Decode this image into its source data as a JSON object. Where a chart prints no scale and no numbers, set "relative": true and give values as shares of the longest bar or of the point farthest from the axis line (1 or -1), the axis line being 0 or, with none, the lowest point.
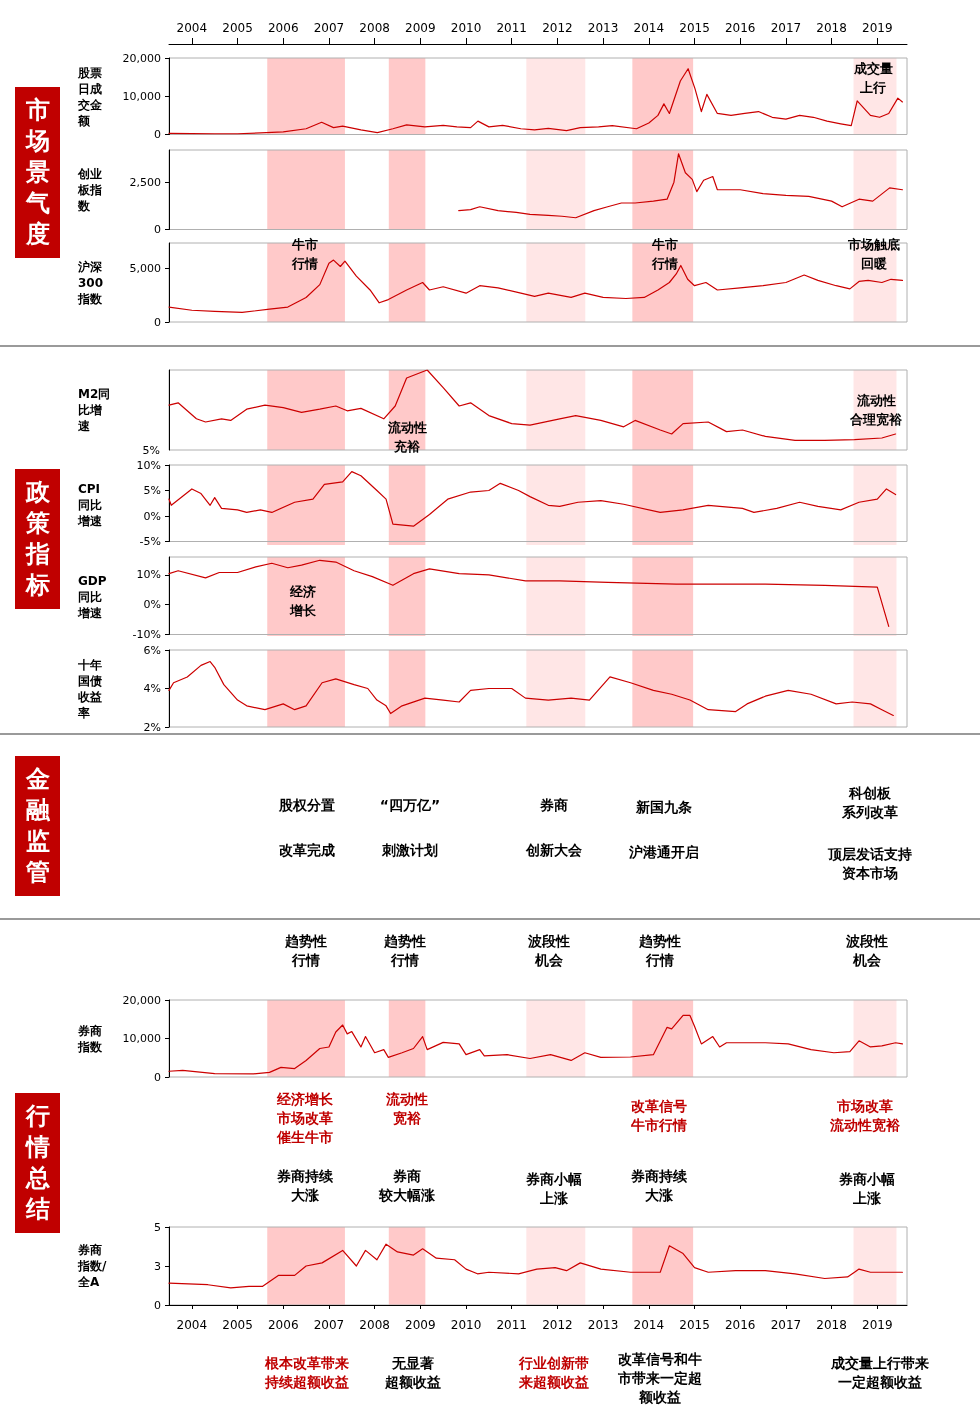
{
  "chart_data": [
    {
      "type": "line",
      "title": "市场景气度",
      "ylabel": "股票日成交金额",
      "xlim": [
        2004,
        2020.15
      ],
      "ylim": [
        0,
        20000
      ],
      "yticks": [
        {
          "value": 0,
          "label": "0"
        },
        {
          "value": 10000,
          "label": "10,000"
        },
        {
          "value": 20000,
          "label": "20,000"
        }
      ],
      "x2lim": [
        2004,
        2020.15
      ],
      "x2ticks": [
        {
          "value": 2004.5,
          "label": "2004"
        },
        {
          "value": 2005.5,
          "label": "2005"
        },
        {
          "value": 2006.5,
          "label": "2006"
        },
        {
          "value": 2007.5,
          "label": "2007"
        },
        {
          "value": 2008.5,
          "label": "2008"
        },
        {
          "value": 2009.5,
          "label": "2009"
        },
        {
          "value": 2010.5,
          "label": "2010"
        },
        {
          "value": 2011.5,
          "label": "2011"
        },
        {
          "value": 2012.5,
          "label": "2012"
        },
        {
          "value": 2013.5,
          "label": "2013"
        },
        {
          "value": 2014.5,
          "label": "2014"
        },
        {
          "value": 2015.5,
          "label": "2015"
        },
        {
          "value": 2016.5,
          "label": "2016"
        },
        {
          "value": 2017.5,
          "label": "2017"
        },
        {
          "value": 2018.5,
          "label": "2018"
        },
        {
          "value": 2019.5,
          "label": "2019"
        }
      ],
      "tick_labels": "y",
      "color": "#cc0000",
      "x": [
        2004.0,
        2005.0,
        2005.5,
        2006.0,
        2006.5,
        2007.0,
        2007.34,
        2007.6,
        2007.8,
        2008.2,
        2008.56,
        2008.9,
        2009.2,
        2009.6,
        2010.0,
        2010.3,
        2010.6,
        2010.76,
        2011.0,
        2011.3,
        2011.7,
        2012.0,
        2012.3,
        2012.7,
        2013.0,
        2013.4,
        2013.7,
        2014.23,
        2014.5,
        2014.7,
        2014.83,
        2014.95,
        2015.19,
        2015.36,
        2015.51,
        2015.65,
        2015.77,
        2016.0,
        2016.3,
        2016.6,
        2016.9,
        2017.2,
        2017.5,
        2017.8,
        2018.1,
        2018.4,
        2018.7,
        2018.93,
        2019.06,
        2019.35,
        2019.55,
        2019.75,
        2019.95,
        2020.05
      ],
      "values": [
        300,
        200,
        200,
        400,
        700,
        1500,
        3200,
        1800,
        2200,
        1200,
        500,
        1500,
        2500,
        2000,
        2400,
        2000,
        1800,
        3500,
        2000,
        2400,
        1500,
        1200,
        1600,
        1000,
        1800,
        2000,
        2300,
        1500,
        3000,
        5000,
        8000,
        5500,
        14000,
        17200,
        12000,
        6000,
        10500,
        5500,
        5000,
        5500,
        6000,
        4500,
        4000,
        5000,
        4500,
        3500,
        2800,
        2300,
        8800,
        5000,
        4500,
        5500,
        9500,
        8500
      ],
      "annotations": [
        "成交量上行"
      ],
      "bands": [
        {
          "axis": "x",
          "from": 2006.15,
          "to": 2007.85,
          "color": "#ffc9c9"
        },
        {
          "axis": "x",
          "from": 2008.81,
          "to": 2009.61,
          "color": "#ffc9c9"
        },
        {
          "axis": "x",
          "from": 2011.82,
          "to": 2013.11,
          "color": "#ffe6e6"
        },
        {
          "axis": "x",
          "from": 2014.14,
          "to": 2015.47,
          "color": "#ffc9c9"
        },
        {
          "axis": "x",
          "from": 2018.98,
          "to": 2019.92,
          "color": "#ffe6e6"
        }
      ]
    },
    {
      "type": "line",
      "ylabel": "创业板指数",
      "xlim": [
        2004,
        2020.15
      ],
      "ylim": [
        0,
        4200
      ],
      "yticks": [
        {
          "value": 0,
          "label": "0"
        },
        {
          "value": 2500,
          "label": "2,500"
        }
      ],
      "tick_labels": "y",
      "color": "#cc0000",
      "x": [
        2010.34,
        2010.6,
        2010.8,
        2011.2,
        2011.6,
        2011.9,
        2012.3,
        2012.6,
        2012.9,
        2013.3,
        2013.6,
        2013.9,
        2014.2,
        2014.6,
        2014.9,
        2015.05,
        2015.15,
        2015.3,
        2015.45,
        2015.55,
        2015.7,
        2015.9,
        2016.0,
        2016.5,
        2017.0,
        2017.5,
        2018.0,
        2018.5,
        2018.73,
        2019.1,
        2019.4,
        2019.77,
        2020.05
      ],
      "values": [
        1000,
        1050,
        1200,
        1000,
        900,
        800,
        750,
        700,
        620,
        1000,
        1200,
        1400,
        1400,
        1500,
        1600,
        2500,
        4000,
        3000,
        2650,
        2000,
        2600,
        2800,
        2100,
        2100,
        1900,
        1800,
        1750,
        1500,
        1200,
        1600,
        1500,
        2200,
        2100
      ],
      "bands": [
        {
          "axis": "x",
          "from": 2006.15,
          "to": 2007.85,
          "color": "#ffc9c9"
        },
        {
          "axis": "x",
          "from": 2008.81,
          "to": 2009.61,
          "color": "#ffc9c9"
        },
        {
          "axis": "x",
          "from": 2011.82,
          "to": 2013.11,
          "color": "#ffe6e6"
        },
        {
          "axis": "x",
          "from": 2014.14,
          "to": 2015.47,
          "color": "#ffc9c9"
        },
        {
          "axis": "x",
          "from": 2018.98,
          "to": 2019.92,
          "color": "#ffe6e6"
        }
      ]
    },
    {
      "type": "line",
      "ylabel": "沪深300指数",
      "xlim": [
        2004,
        2020.15
      ],
      "ylim": [
        0,
        7400
      ],
      "yticks": [
        {
          "value": 0,
          "label": "0"
        },
        {
          "value": 5000,
          "label": "5,000"
        }
      ],
      "tick_labels": "y",
      "color": "#cc0000",
      "x": [
        2004.0,
        2004.5,
        2005.0,
        2005.6,
        2006.2,
        2006.6,
        2007.0,
        2007.3,
        2007.5,
        2007.6,
        2007.75,
        2007.85,
        2008.1,
        2008.4,
        2008.6,
        2008.8,
        2009.2,
        2009.55,
        2009.7,
        2010.0,
        2010.5,
        2010.8,
        2011.2,
        2011.7,
        2012.0,
        2012.3,
        2012.8,
        2013.1,
        2013.5,
        2014.0,
        2014.4,
        2014.7,
        2014.95,
        2015.1,
        2015.2,
        2015.35,
        2015.5,
        2015.75,
        2016.0,
        2016.5,
        2017.0,
        2017.5,
        2017.9,
        2018.2,
        2018.6,
        2018.9,
        2019.1,
        2019.3,
        2019.6,
        2019.8,
        2020.05
      ],
      "values": [
        1400,
        1100,
        1000,
        900,
        1200,
        1400,
        2300,
        3500,
        5500,
        5800,
        5200,
        5700,
        4300,
        3000,
        1800,
        2100,
        3000,
        3700,
        3000,
        3300,
        2700,
        3400,
        3200,
        2700,
        2400,
        2700,
        2300,
        2700,
        2300,
        2200,
        2300,
        3000,
        3700,
        4500,
        5300,
        4000,
        3400,
        3700,
        3000,
        3200,
        3400,
        3700,
        4400,
        3900,
        3400,
        3100,
        3800,
        3900,
        3700,
        4000,
        3900
      ],
      "annotations": [
        "牛市行情",
        "牛市行情",
        "市场触底回暖"
      ],
      "bands": [
        {
          "axis": "x",
          "from": 2006.15,
          "to": 2007.85,
          "color": "#ffc9c9"
        },
        {
          "axis": "x",
          "from": 2008.81,
          "to": 2009.61,
          "color": "#ffc9c9"
        },
        {
          "axis": "x",
          "from": 2011.82,
          "to": 2013.11,
          "color": "#ffe6e6"
        },
        {
          "axis": "x",
          "from": 2014.14,
          "to": 2015.47,
          "color": "#ffc9c9"
        },
        {
          "axis": "x",
          "from": 2018.98,
          "to": 2019.92,
          "color": "#ffe6e6"
        }
      ]
    },
    {
      "type": "line",
      "title": "政策指标",
      "ylabel": "M2同比增速",
      "relative": true,
      "xlim": [
        2004,
        2020.15
      ],
      "tick_labels": false,
      "color": "#cc0000",
      "x": [
        2004.0,
        2004.2,
        2004.6,
        2004.8,
        2005.15,
        2005.35,
        2005.7,
        2006.1,
        2006.5,
        2006.9,
        2007.3,
        2007.65,
        2007.9,
        2008.2,
        2008.7,
        2008.95,
        2009.2,
        2009.65,
        2010.0,
        2010.35,
        2010.6,
        2011.0,
        2011.5,
        2011.9,
        2012.55,
        2012.9,
        2013.45,
        2013.95,
        2014.2,
        2014.75,
        2015.0,
        2015.25,
        2015.8,
        2016.2,
        2016.55,
        2017.05,
        2017.7,
        2018.35,
        2019.0,
        2019.6,
        2019.9
      ],
      "values": [
        0.56,
        0.59,
        0.39,
        0.35,
        0.39,
        0.37,
        0.51,
        0.56,
        0.53,
        0.47,
        0.51,
        0.55,
        0.49,
        0.52,
        0.39,
        0.55,
        0.9,
        1,
        0.78,
        0.55,
        0.59,
        0.43,
        0.33,
        0.31,
        0.39,
        0.43,
        0.37,
        0.29,
        0.37,
        0.25,
        0.2,
        0.33,
        0.35,
        0.23,
        0.25,
        0.17,
        0.12,
        0.12,
        0.13,
        0.15,
        0.2
      ],
      "annotations": [
        "5%",
        "流动性充裕",
        "流动性合理宽裕"
      ],
      "bands": [
        {
          "axis": "x",
          "from": 2006.15,
          "to": 2007.85,
          "color": "#ffc9c9"
        },
        {
          "axis": "x",
          "from": 2008.81,
          "to": 2009.61,
          "color": "#ffc9c9"
        },
        {
          "axis": "x",
          "from": 2011.82,
          "to": 2013.11,
          "color": "#ffe6e6"
        },
        {
          "axis": "x",
          "from": 2014.14,
          "to": 2015.47,
          "color": "#ffc9c9"
        },
        {
          "axis": "x",
          "from": 2018.98,
          "to": 2019.92,
          "color": "#ffe6e6"
        }
      ]
    },
    {
      "type": "line",
      "ylabel": "CPI同比增速",
      "xlim": [
        2004,
        2020.15
      ],
      "ylim": [
        -5,
        10
      ],
      "yticks": [
        {
          "value": -5,
          "label": "-5%"
        },
        {
          "value": 0,
          "label": "0%"
        },
        {
          "value": 5,
          "label": "5%"
        },
        {
          "value": 10,
          "label": "10%"
        }
      ],
      "tick_labels": "y",
      "color": "#cc0000",
      "x": [
        2004.0,
        2004.05,
        2004.5,
        2004.7,
        2004.9,
        2005.0,
        2005.15,
        2005.5,
        2005.7,
        2006.0,
        2006.25,
        2006.75,
        2007.15,
        2007.4,
        2007.8,
        2008.0,
        2008.2,
        2008.55,
        2008.75,
        2008.9,
        2009.35,
        2009.7,
        2010.1,
        2010.6,
        2011.0,
        2011.25,
        2011.65,
        2011.9,
        2012.3,
        2012.55,
        2012.95,
        2013.45,
        2013.95,
        2014.75,
        2015.25,
        2015.8,
        2016.55,
        2016.8,
        2017.3,
        2017.8,
        2018.2,
        2018.7,
        2019.1,
        2019.5,
        2019.7,
        2019.9
      ],
      "values": [
        3.3,
        2.1,
        5.3,
        4.4,
        2.1,
        3.6,
        1.5,
        1.2,
        0.7,
        1.2,
        0.7,
        2.7,
        3.3,
        6.2,
        6.7,
        8.7,
        7.9,
        5,
        3.3,
        -1.6,
        -2,
        0.3,
        3.3,
        4.7,
        5,
        6.4,
        5,
        3.8,
        2.1,
        1.9,
        2.7,
        3,
        2.3,
        0.7,
        1.2,
        2.1,
        1.5,
        0.7,
        1.5,
        2.7,
        1.9,
        1.2,
        2.7,
        3.3,
        5.3,
        4.2
      ],
      "bands": [
        {
          "axis": "x",
          "from": 2006.15,
          "to": 2007.85,
          "color": "#ffc9c9"
        },
        {
          "axis": "x",
          "from": 2008.81,
          "to": 2009.61,
          "color": "#ffc9c9"
        },
        {
          "axis": "x",
          "from": 2011.82,
          "to": 2013.11,
          "color": "#ffe6e6"
        },
        {
          "axis": "x",
          "from": 2014.14,
          "to": 2015.47,
          "color": "#ffc9c9"
        },
        {
          "axis": "x",
          "from": 2018.98,
          "to": 2019.92,
          "color": "#ffe6e6"
        }
      ]
    },
    {
      "type": "line",
      "ylabel": "GDP同比增速",
      "xlim": [
        2004,
        2020.15
      ],
      "ylim": [
        -10,
        16
      ],
      "yticks": [
        {
          "value": -10,
          "label": "-10%"
        },
        {
          "value": 0,
          "label": "0%"
        },
        {
          "value": 10,
          "label": "10%"
        }
      ],
      "tick_labels": "y",
      "color": "#cc0000",
      "x": [
        2004.0,
        2004.2,
        2004.8,
        2005.1,
        2005.5,
        2005.9,
        2006.25,
        2006.6,
        2006.9,
        2007.3,
        2007.65,
        2008.05,
        2008.45,
        2008.9,
        2009.35,
        2009.7,
        2010.35,
        2011.0,
        2011.8,
        2012.55,
        2013.6,
        2015.1,
        2017.05,
        2018.35,
        2019.5,
        2019.75
      ],
      "values": [
        10.4,
        11.4,
        9,
        10.8,
        10.8,
        12.7,
        13.9,
        12.4,
        13.3,
        14.9,
        14.3,
        11.4,
        9.4,
        6.5,
        10.4,
        12,
        10.4,
        10,
        8,
        8,
        7.5,
        6.9,
        6.9,
        6.5,
        5.9,
        -7.3
      ],
      "annotations": [
        "经济增长"
      ],
      "bands": [
        {
          "axis": "x",
          "from": 2006.15,
          "to": 2007.85,
          "color": "#ffc9c9"
        },
        {
          "axis": "x",
          "from": 2008.81,
          "to": 2009.61,
          "color": "#ffc9c9"
        },
        {
          "axis": "x",
          "from": 2011.82,
          "to": 2013.11,
          "color": "#ffe6e6"
        },
        {
          "axis": "x",
          "from": 2014.14,
          "to": 2015.47,
          "color": "#ffc9c9"
        },
        {
          "axis": "x",
          "from": 2018.98,
          "to": 2019.92,
          "color": "#ffe6e6"
        }
      ]
    },
    {
      "type": "line",
      "ylabel": "十年国债收益率",
      "xlim": [
        2004,
        2020.15
      ],
      "ylim": [
        2,
        6
      ],
      "yticks": [
        {
          "value": 2,
          "label": "2%"
        },
        {
          "value": 4,
          "label": "4%"
        },
        {
          "value": 6,
          "label": "6%"
        }
      ],
      "tick_labels": "y",
      "color": "#cc0000",
      "x": [
        2004.0,
        2004.1,
        2004.4,
        2004.7,
        2004.9,
        2005.0,
        2005.2,
        2005.5,
        2005.7,
        2006.1,
        2006.5,
        2006.75,
        2007.0,
        2007.35,
        2007.65,
        2008.05,
        2008.35,
        2008.55,
        2008.75,
        2008.85,
        2009.1,
        2009.6,
        2010.0,
        2010.35,
        2010.6,
        2011.0,
        2011.5,
        2011.8,
        2012.3,
        2012.8,
        2013.2,
        2013.65,
        2014.1,
        2014.6,
        2015.0,
        2015.4,
        2015.8,
        2016.4,
        2016.65,
        2017.05,
        2017.55,
        2018.05,
        2018.6,
        2018.95,
        2019.35,
        2019.6,
        2019.85
      ],
      "values": [
        3.9,
        4.3,
        4.6,
        5.2,
        5.4,
        5.1,
        4.2,
        3.4,
        3.1,
        2.9,
        3.2,
        2.9,
        3.1,
        4.3,
        4.5,
        4.2,
        4,
        3.4,
        3.1,
        2.7,
        3.1,
        3.5,
        3.4,
        3.3,
        3.9,
        4,
        4,
        3.5,
        3.4,
        3.5,
        3.4,
        4.6,
        4.3,
        3.9,
        3.7,
        3.4,
        2.9,
        2.8,
        3.2,
        3.6,
        3.9,
        3.7,
        3.2,
        3.3,
        3.2,
        2.9,
        2.6
      ],
      "bands": [
        {
          "axis": "x",
          "from": 2006.15,
          "to": 2007.85,
          "color": "#ffc9c9"
        },
        {
          "axis": "x",
          "from": 2008.81,
          "to": 2009.61,
          "color": "#ffc9c9"
        },
        {
          "axis": "x",
          "from": 2011.82,
          "to": 2013.11,
          "color": "#ffe6e6"
        },
        {
          "axis": "x",
          "from": 2014.14,
          "to": 2015.47,
          "color": "#ffc9c9"
        },
        {
          "axis": "x",
          "from": 2018.98,
          "to": 2019.92,
          "color": "#ffe6e6"
        }
      ]
    },
    {
      "type": "other",
      "title": "金融监管",
      "colors": [
        "#000000",
        "#000000",
        "#000000",
        "#000000",
        "#000000",
        "#000000",
        "#000000",
        "#000000",
        "#000000",
        "#000000"
      ],
      "annotations": [
        "股权分置",
        "改革完成",
        "“四万亿”",
        "刺激计划",
        "券商",
        "创新大会",
        "新国九条",
        "沪港通开启",
        "科创板系列改革",
        "顶层发话支持资本市场"
      ]
    },
    {
      "type": "other",
      "title": "行情总结",
      "colors": [
        "#000000",
        "#000000",
        "#000000",
        "#000000",
        "#000000"
      ],
      "annotations": [
        "趋势性行情",
        "趋势性行情",
        "波段性机会",
        "趋势性行情",
        "波段性机会"
      ]
    },
    {
      "type": "line",
      "ylabel": "券商指数",
      "xlim": [
        2004,
        2020.15
      ],
      "ylim": [
        0,
        20000
      ],
      "yticks": [
        {
          "value": 0,
          "label": "0"
        },
        {
          "value": 10000,
          "label": "10,000"
        },
        {
          "value": 20000,
          "label": "20,000"
        }
      ],
      "tick_labels": "y",
      "color": "#cc0000",
      "x": [
        2004.0,
        2004.3,
        2005.0,
        2005.85,
        2006.2,
        2006.45,
        2006.75,
        2007.0,
        2007.3,
        2007.5,
        2007.65,
        2007.8,
        2007.9,
        2008.0,
        2008.2,
        2008.3,
        2008.5,
        2008.7,
        2008.8,
        2009.1,
        2009.35,
        2009.55,
        2009.65,
        2010.0,
        2010.35,
        2010.5,
        2010.8,
        2010.9,
        2011.4,
        2011.9,
        2012.35,
        2012.8,
        2013.1,
        2013.45,
        2014.1,
        2014.6,
        2014.9,
        2015.0,
        2015.25,
        2015.4,
        2015.5,
        2015.65,
        2015.9,
        2016.05,
        2016.2,
        2017.05,
        2017.55,
        2018.05,
        2018.55,
        2018.9,
        2019.1,
        2019.35,
        2019.6,
        2019.9,
        2020.05
      ],
      "values": [
        1500,
        1700,
        900,
        800,
        1200,
        2500,
        2200,
        4300,
        7400,
        7800,
        11700,
        13500,
        11200,
        11800,
        7800,
        10500,
        6300,
        7100,
        5100,
        6300,
        7400,
        10500,
        7100,
        9000,
        8600,
        5800,
        7100,
        5500,
        5800,
        4800,
        5800,
        4300,
        6300,
        5100,
        5200,
        5800,
        12900,
        12500,
        16000,
        16000,
        13200,
        8600,
        10500,
        7800,
        8900,
        8900,
        8600,
        7100,
        6300,
        6600,
        9400,
        7800,
        8100,
        8900,
        8600
      ],
      "bands": [
        {
          "axis": "x",
          "from": 2006.15,
          "to": 2007.85,
          "color": "#ffc9c9"
        },
        {
          "axis": "x",
          "from": 2008.81,
          "to": 2009.61,
          "color": "#ffc9c9"
        },
        {
          "axis": "x",
          "from": 2011.82,
          "to": 2013.11,
          "color": "#ffe6e6"
        },
        {
          "axis": "x",
          "from": 2014.14,
          "to": 2015.47,
          "color": "#ffc9c9"
        },
        {
          "axis": "x",
          "from": 2018.98,
          "to": 2019.92,
          "color": "#ffe6e6"
        }
      ]
    },
    {
      "type": "other",
      "colors": [
        "#c00000",
        "#c00000",
        "#c00000",
        "#c00000"
      ],
      "annotations": [
        "经济增长市场改革催生牛市",
        "流动性宽裕",
        "改革信号牛市行情",
        "市场改革流动性宽裕"
      ]
    },
    {
      "type": "other",
      "colors": [
        "#000000",
        "#000000",
        "#000000",
        "#000000",
        "#000000"
      ],
      "annotations": [
        "券商持续大涨",
        "券商较大幅涨",
        "券商小幅上涨",
        "券商持续大涨",
        "券商小幅上涨"
      ]
    },
    {
      "type": "line",
      "ylabel": "券商指数/全A",
      "xlim": [
        2004,
        2020.15
      ],
      "ylim": [
        0,
        5
      ],
      "yticks": [
        {
          "value": 0,
          "label": "0"
        },
        {
          "value": 2.5,
          "label": "3"
        },
        {
          "value": 5,
          "label": "5"
        }
      ],
      "xticks": [
        {
          "value": 2004.5,
          "label": "2004"
        },
        {
          "value": 2005.5,
          "label": "2005"
        },
        {
          "value": 2006.5,
          "label": "2006"
        },
        {
          "value": 2007.5,
          "label": "2007"
        },
        {
          "value": 2008.5,
          "label": "2008"
        },
        {
          "value": 2009.5,
          "label": "2009"
        },
        {
          "value": 2010.5,
          "label": "2010"
        },
        {
          "value": 2011.5,
          "label": "2011"
        },
        {
          "value": 2012.5,
          "label": "2012"
        },
        {
          "value": 2013.5,
          "label": "2013"
        },
        {
          "value": 2014.5,
          "label": "2014"
        },
        {
          "value": 2015.5,
          "label": "2015"
        },
        {
          "value": 2016.5,
          "label": "2016"
        },
        {
          "value": 2017.5,
          "label": "2017"
        },
        {
          "value": 2018.5,
          "label": "2018"
        },
        {
          "value": 2019.5,
          "label": "2019"
        }
      ],
      "color": "#cc0000",
      "x": [
        2004.0,
        2004.85,
        2005.35,
        2005.75,
        2006.05,
        2006.4,
        2006.75,
        2007.0,
        2007.35,
        2007.8,
        2008.1,
        2008.3,
        2008.55,
        2008.75,
        2009.0,
        2009.35,
        2009.55,
        2009.85,
        2010.25,
        2010.5,
        2010.75,
        2011.0,
        2011.65,
        2012.05,
        2012.45,
        2012.7,
        2013.0,
        2013.45,
        2014.1,
        2014.75,
        2014.95,
        2015.25,
        2015.5,
        2015.8,
        2016.4,
        2017.05,
        2017.7,
        2018.35,
        2018.85,
        2019.1,
        2019.35,
        2019.9,
        2020.05
      ],
      "values": [
        1.4,
        1.3,
        1.1,
        1.2,
        1.2,
        1.9,
        1.9,
        2.5,
        2.7,
        3.5,
        2.5,
        3.5,
        2.9,
        3.9,
        3.4,
        3.2,
        3.6,
        3,
        2.9,
        2.3,
        2,
        2.1,
        2,
        2.3,
        2.4,
        2.2,
        2.7,
        2.3,
        2.1,
        2.1,
        3.8,
        3.3,
        2.4,
        2.1,
        2.2,
        2.2,
        2,
        1.7,
        1.8,
        2.3,
        2.1,
        2.1,
        2.1
      ],
      "bands": [
        {
          "axis": "x",
          "from": 2006.15,
          "to": 2007.85,
          "color": "#ffc9c9"
        },
        {
          "axis": "x",
          "from": 2008.81,
          "to": 2009.61,
          "color": "#ffc9c9"
        },
        {
          "axis": "x",
          "from": 2011.82,
          "to": 2013.11,
          "color": "#ffe6e6"
        },
        {
          "axis": "x",
          "from": 2014.14,
          "to": 2015.47,
          "color": "#ffc9c9"
        },
        {
          "axis": "x",
          "from": 2018.98,
          "to": 2019.92,
          "color": "#ffe6e6"
        }
      ]
    },
    {
      "type": "other",
      "colors": [
        "#c00000",
        "#000000",
        "#c00000",
        "#000000",
        "#000000"
      ],
      "annotations": [
        "根本改革带来持续超额收益",
        "无显著超额收益",
        "行业创新带来超额收益",
        "改革信号和牛市带来一定超额收益",
        "成交量上行带来一定超额收益"
      ]
    }
  ]
}
